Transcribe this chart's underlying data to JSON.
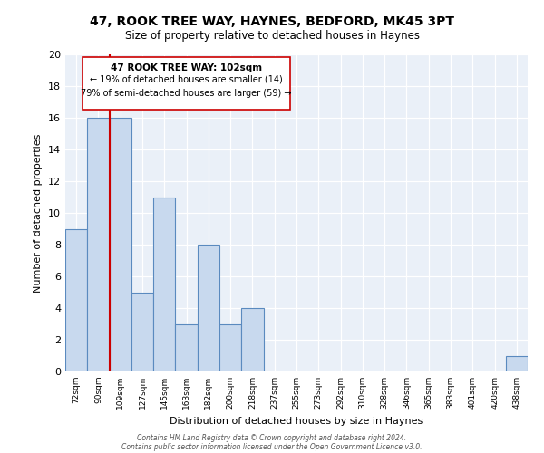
{
  "title": "47, ROOK TREE WAY, HAYNES, BEDFORD, MK45 3PT",
  "subtitle": "Size of property relative to detached houses in Haynes",
  "xlabel": "Distribution of detached houses by size in Haynes",
  "ylabel": "Number of detached properties",
  "categories": [
    "72sqm",
    "90sqm",
    "109sqm",
    "127sqm",
    "145sqm",
    "163sqm",
    "182sqm",
    "200sqm",
    "218sqm",
    "237sqm",
    "255sqm",
    "273sqm",
    "292sqm",
    "310sqm",
    "328sqm",
    "346sqm",
    "365sqm",
    "383sqm",
    "401sqm",
    "420sqm",
    "438sqm"
  ],
  "values": [
    9,
    16,
    16,
    5,
    11,
    3,
    8,
    3,
    4,
    0,
    0,
    0,
    0,
    0,
    0,
    0,
    0,
    0,
    0,
    0,
    1
  ],
  "bar_color": "#c8d9ee",
  "bar_edgecolor": "#5a8abf",
  "ylim": [
    0,
    20
  ],
  "yticks": [
    0,
    2,
    4,
    6,
    8,
    10,
    12,
    14,
    16,
    18,
    20
  ],
  "property_line_color": "#cc0000",
  "annotation_title": "47 ROOK TREE WAY: 102sqm",
  "annotation_line1": "← 19% of detached houses are smaller (14)",
  "annotation_line2": "79% of semi-detached houses are larger (59) →",
  "annotation_box_color": "#ffffff",
  "annotation_box_edgecolor": "#cc0000",
  "footer1": "Contains HM Land Registry data © Crown copyright and database right 2024.",
  "footer2": "Contains public sector information licensed under the Open Government Licence v3.0.",
  "background_color": "#eaf0f8",
  "grid_color": "#ffffff",
  "fig_background": "#ffffff"
}
